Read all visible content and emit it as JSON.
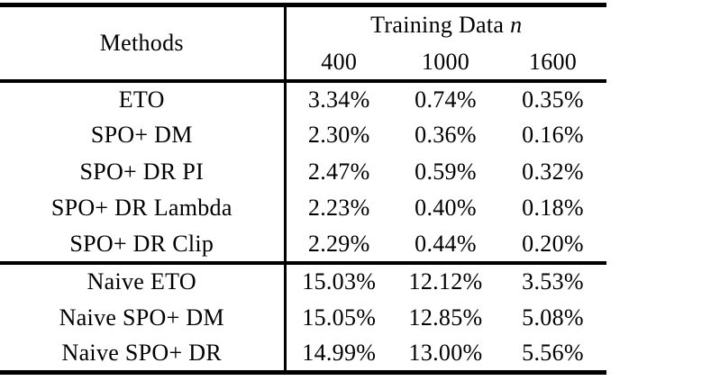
{
  "table": {
    "header": {
      "methods_label": "Methods",
      "group_label_prefix": "Training Data ",
      "group_label_var": "n",
      "columns": [
        "400",
        "1000",
        "1600"
      ]
    },
    "body_group1": [
      {
        "method": "ETO",
        "v400": "3.34%",
        "v1000": "0.74%",
        "v1600": "0.35%"
      },
      {
        "method": "SPO+ DM",
        "v400": "2.30%",
        "v1000": "0.36%",
        "v1600": "0.16%"
      },
      {
        "method": "SPO+ DR PI",
        "v400": "2.47%",
        "v1000": "0.59%",
        "v1600": "0.32%"
      },
      {
        "method": "SPO+ DR Lambda",
        "v400": "2.23%",
        "v1000": "0.40%",
        "v1600": "0.18%"
      },
      {
        "method": "SPO+ DR Clip",
        "v400": "2.29%",
        "v1000": "0.44%",
        "v1600": "0.20%"
      }
    ],
    "body_group2": [
      {
        "method": "Naive ETO",
        "v400": "15.03%",
        "v1000": "12.12%",
        "v1600": "3.53%"
      },
      {
        "method": "Naive SPO+ DM",
        "v400": "15.05%",
        "v1000": "12.85%",
        "v1600": "5.08%"
      },
      {
        "method": "Naive SPO+ DR",
        "v400": "14.99%",
        "v1000": "13.00%",
        "v1600": "5.56%"
      }
    ]
  },
  "colors": {
    "background": "#ffffff",
    "text": "#000000",
    "rule": "#000000"
  }
}
